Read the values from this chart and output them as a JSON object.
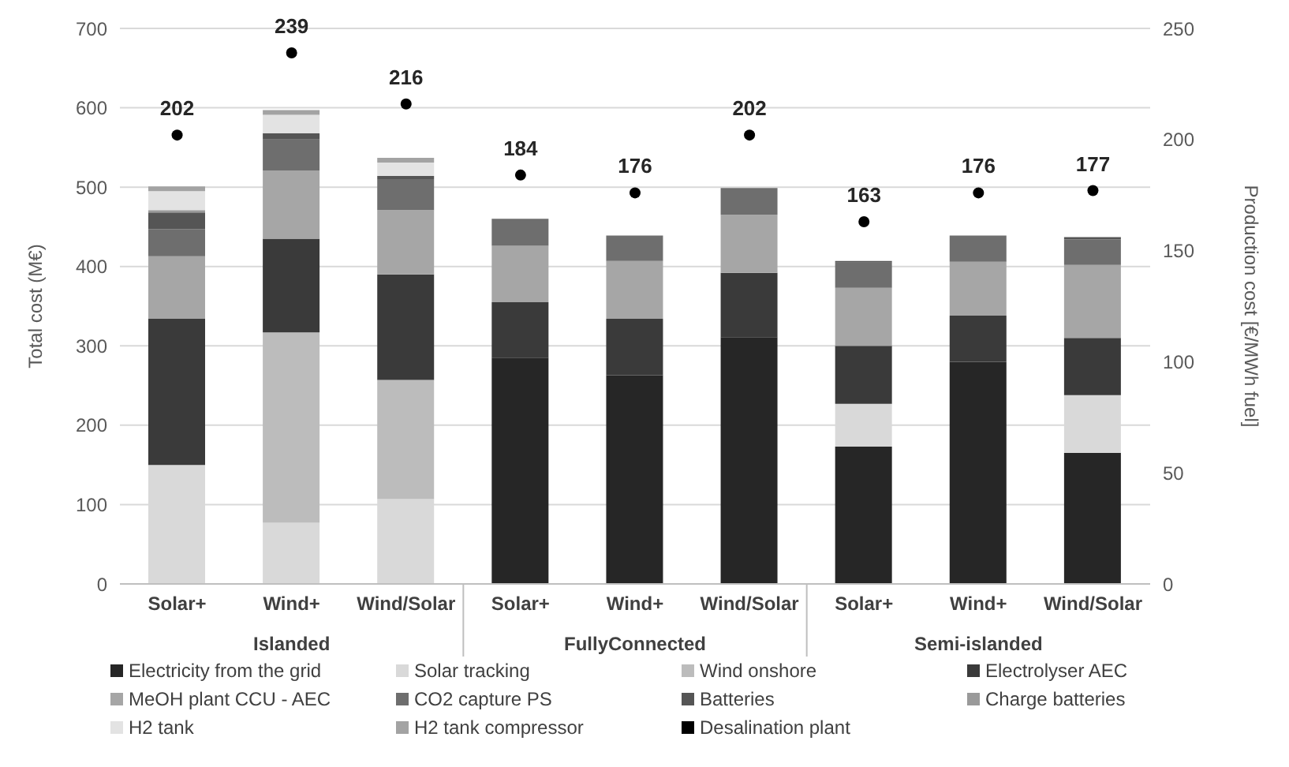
{
  "chart_data": {
    "type": "bar",
    "stacked": true,
    "ylabel": "Total cost (M€)",
    "y2label": "Production cost [€/MWh fuel]",
    "categories": [
      "Solar+",
      "Wind+",
      "Wind/Solar",
      "Solar+",
      "Wind+",
      "Wind/Solar",
      "Solar+",
      "Wind+",
      "Wind/Solar"
    ],
    "annotations": [
      "Islanded",
      "FullyConnected",
      "Semi-islanded"
    ],
    "ylim": [
      0,
      700
    ],
    "yticks": [
      0,
      100,
      200,
      300,
      400,
      500,
      600,
      700
    ],
    "y2lim": [
      0,
      250
    ],
    "y2ticks": [
      0,
      50,
      100,
      150,
      200,
      250
    ],
    "grid": "y",
    "legend": "bottom",
    "marker": "circle",
    "series": [
      {
        "name": "Electricity from the grid",
        "color": "#262626",
        "values": [
          null,
          null,
          null,
          285,
          263,
          311,
          173,
          280,
          165
        ]
      },
      {
        "name": "Solar tracking",
        "color": "#d9d9d9",
        "values": [
          150,
          77,
          107,
          null,
          null,
          null,
          54,
          null,
          73
        ]
      },
      {
        "name": "Wind onshore",
        "color": "#bcbcbc",
        "values": [
          null,
          240,
          150,
          null,
          null,
          null,
          null,
          null,
          null
        ]
      },
      {
        "name": "Electrolyser AEC",
        "color": "#3a3a3a",
        "values": [
          184,
          118,
          133,
          70,
          71,
          81,
          73,
          58,
          72
        ]
      },
      {
        "name": "MeOH plant CCU - AEC",
        "color": "#a6a6a6",
        "values": [
          79,
          86,
          81,
          71,
          73,
          73,
          73,
          68,
          92
        ]
      },
      {
        "name": "CO2 capture PS",
        "color": "#6e6e6e",
        "values": [
          34,
          39,
          39,
          34,
          32,
          34,
          32,
          33,
          32
        ]
      },
      {
        "name": "Batteries",
        "color": "#555555",
        "values": [
          21,
          8,
          4,
          null,
          null,
          null,
          2,
          null,
          3
        ]
      },
      {
        "name": "Charge batteries",
        "color": "#9a9a9a",
        "values": [
          3,
          null,
          null,
          null,
          null,
          null,
          null,
          null,
          null
        ]
      },
      {
        "name": "H2 tank",
        "color": "#e3e3e3",
        "values": [
          24,
          23,
          17,
          null,
          null,
          null,
          null,
          null,
          null
        ]
      },
      {
        "name": "H2 tank compressor",
        "color": "#a3a3a3",
        "values": [
          6,
          6,
          6,
          null,
          null,
          null,
          null,
          null,
          null
        ]
      },
      {
        "name": "Desalination plant",
        "color": "#000000",
        "values": [
          null,
          null,
          null,
          null,
          null,
          null,
          null,
          null,
          null
        ]
      },
      {
        "type": "scatter",
        "axis": "y2",
        "color": "#000000",
        "values": [
          202,
          239,
          216,
          184,
          176,
          202,
          163,
          176,
          177
        ],
        "value_labels": [
          "202",
          "239",
          "216",
          "184",
          "176",
          "202",
          "163",
          "176",
          "177"
        ]
      }
    ]
  }
}
